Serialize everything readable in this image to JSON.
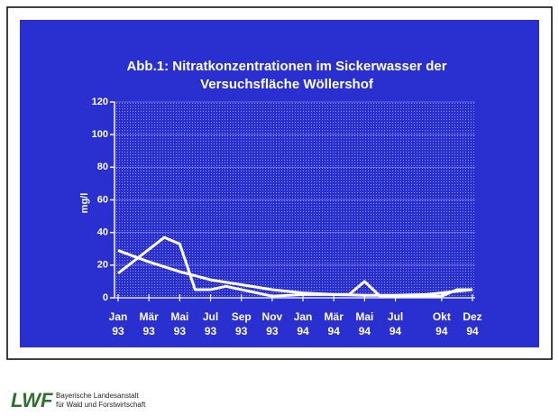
{
  "chart_data": {
    "type": "line",
    "title": [
      "Abb.1: Nitratkonzentrationen im Sickerwasser der",
      "Versuchsfläche Wöllershof"
    ],
    "ylabel": "mg/l",
    "xlim": [
      0,
      23
    ],
    "xticks": [
      {
        "value": 0,
        "label": [
          "Jan",
          "93"
        ]
      },
      {
        "value": 2,
        "label": [
          "Mär",
          "93"
        ]
      },
      {
        "value": 4,
        "label": [
          "Mai",
          "93"
        ]
      },
      {
        "value": 6,
        "label": [
          "Jul",
          "93"
        ]
      },
      {
        "value": 8,
        "label": [
          "Sep",
          "93"
        ]
      },
      {
        "value": 10,
        "label": [
          "Nov",
          "93"
        ]
      },
      {
        "value": 12,
        "label": [
          "Jan",
          "94"
        ]
      },
      {
        "value": 14,
        "label": [
          "Mär",
          "94"
        ]
      },
      {
        "value": 16,
        "label": [
          "Mai",
          "94"
        ]
      },
      {
        "value": 18,
        "label": [
          "Jul",
          "94"
        ]
      },
      {
        "value": 21,
        "label": [
          "Okt",
          "94"
        ]
      },
      {
        "value": 23,
        "label": [
          "Dez",
          "94"
        ]
      }
    ],
    "ylim": [
      0,
      120
    ],
    "yticks": [
      0,
      20,
      40,
      60,
      80,
      100,
      120
    ],
    "grid": true,
    "series": [
      {
        "color": "#ffffff",
        "x": [
          0,
          3,
          4,
          5,
          6,
          7,
          8,
          10,
          12,
          15,
          16,
          17,
          18,
          21,
          22,
          23
        ],
        "values": [
          15,
          37,
          33,
          5,
          5,
          7,
          5,
          1,
          2,
          2,
          10,
          1,
          1,
          1,
          5,
          5
        ]
      },
      {
        "color": "#ffffff",
        "x": [
          0,
          2,
          4,
          6,
          8,
          10,
          12,
          14,
          16,
          18,
          20,
          22,
          23
        ],
        "values": [
          29,
          22,
          16,
          11,
          8,
          5,
          3,
          2,
          1.5,
          1.5,
          2,
          4,
          5
        ]
      }
    ]
  },
  "footer": {
    "logo": "LWF",
    "lines": [
      "Bayerische Landesanstalt",
      "für Wald und Forstwirtschaft"
    ]
  }
}
